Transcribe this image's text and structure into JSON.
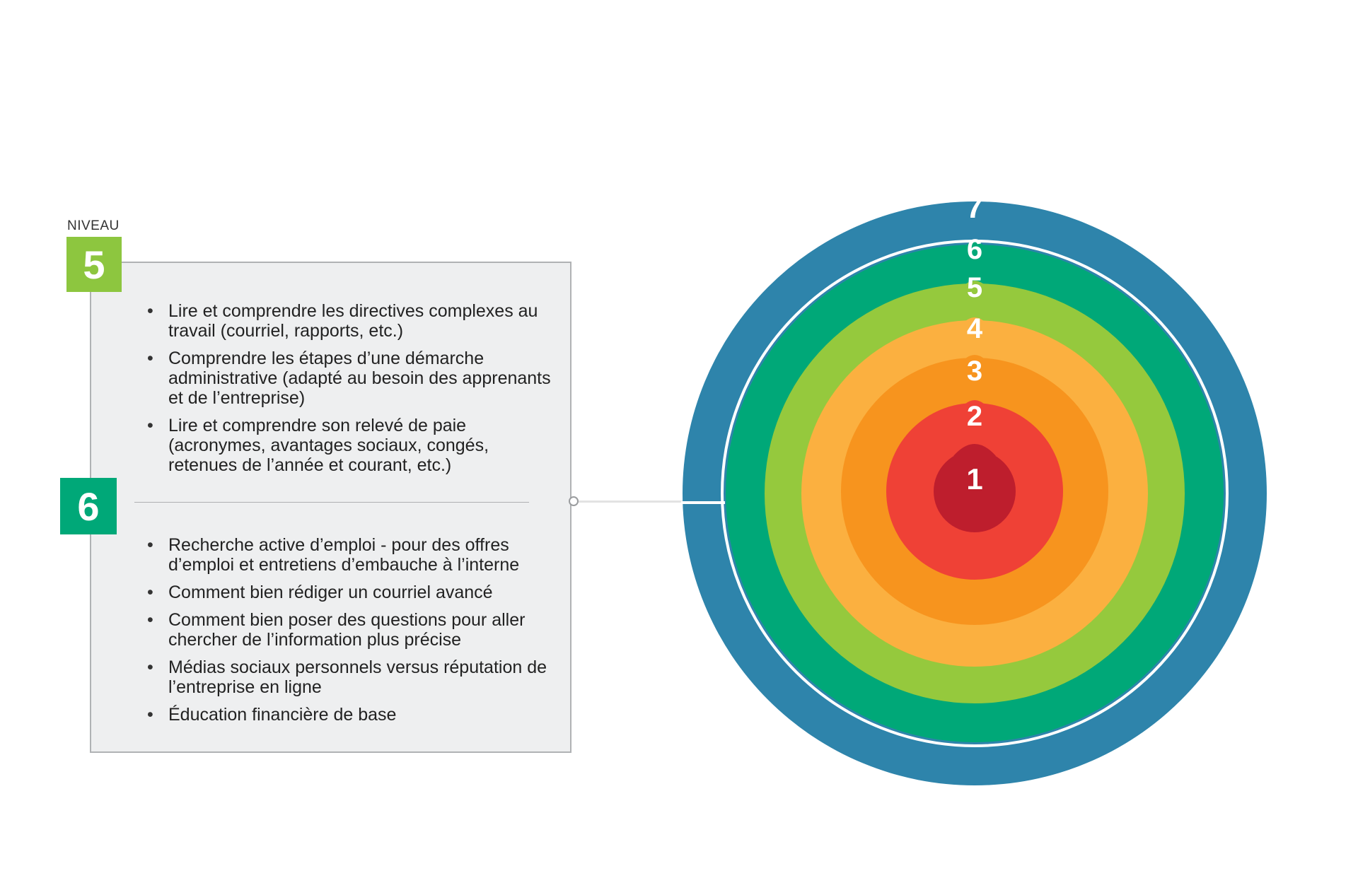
{
  "header": {
    "niveau_label": "NIVEAU"
  },
  "levels": {
    "level5": {
      "number": "5",
      "color": "#8dc63f",
      "items": [
        "Lire et comprendre les directives complexes au travail (courriel, rapports, etc.)",
        "Comprendre les étapes d’une démarche administrative (adapté au besoin des apprenants et de l’entreprise)",
        "Lire et comprendre son relevé de paie (acronymes, avantages sociaux, congés, retenues de l’année et courant, etc.)"
      ]
    },
    "level6": {
      "number": "6",
      "color": "#00a878",
      "items": [
        "Recherche active d’emploi - pour des offres d’emploi et entretiens d’embauche à l’interne",
        "Comment bien rédiger un courriel avancé",
        "Comment bien poser des questions pour aller chercher de l’information plus précise",
        "Médias sociaux personnels versus réputation de l’entreprise en ligne",
        "Éducation financière de base"
      ]
    }
  },
  "rings": [
    {
      "label": "7",
      "color": "#2e84ab"
    },
    {
      "label": "6",
      "color": "#00a878"
    },
    {
      "label": "5",
      "color": "#95c93d"
    },
    {
      "label": "4",
      "color": "#fbb040"
    },
    {
      "label": "3",
      "color": "#f7941e"
    },
    {
      "label": "2",
      "color": "#ef4136"
    },
    {
      "label": "1",
      "color": "#be1e2d"
    }
  ]
}
